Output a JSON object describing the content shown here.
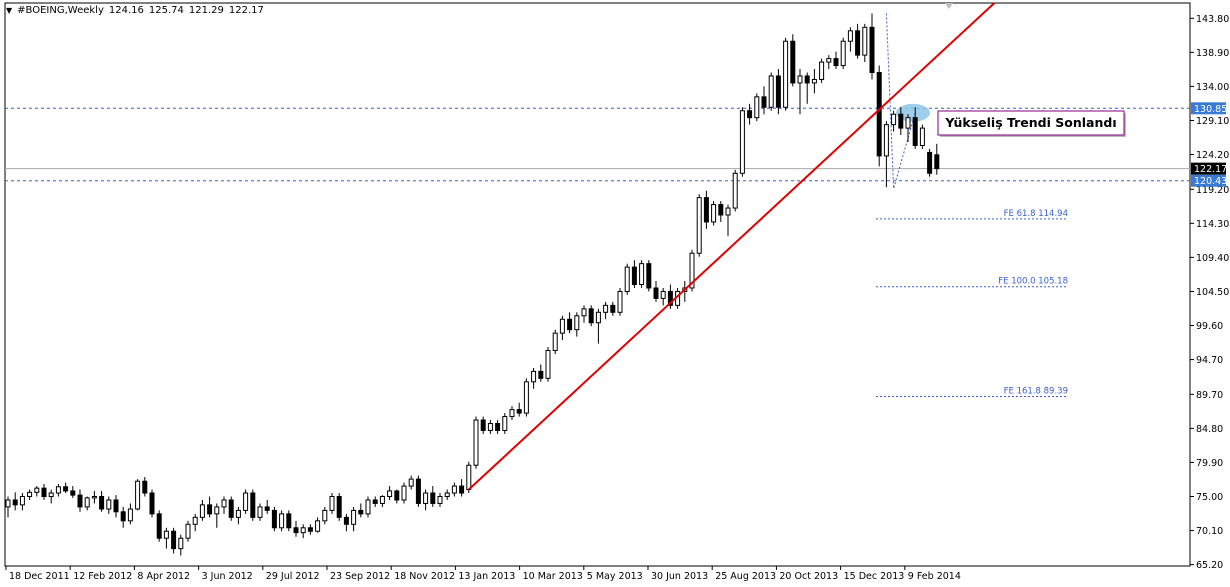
{
  "header": {
    "symbol": "#BOEING,Weekly",
    "open": "124.16",
    "high": "125.74",
    "low": "121.29",
    "close": "122.17"
  },
  "annotation": {
    "label": "Yükseliş Trendi Sonlandı"
  },
  "colors": {
    "trendline": "#e00000",
    "dashed_level": "#3a5fcd",
    "price_tag_blue": "#3a7bd5",
    "current_price_tag": "#000000",
    "highlight_ellipse": "#8ec5e6",
    "annotation_border": "#800080"
  },
  "chart_data": {
    "type": "candlestick",
    "timeframe": "Weekly",
    "ylim": [
      65.0,
      146.0
    ],
    "y_ticks": [
      "143.80",
      "138.90",
      "134.00",
      "129.10",
      "124.20",
      "119.20",
      "114.30",
      "109.40",
      "104.50",
      "99.60",
      "94.70",
      "89.70",
      "84.80",
      "79.90",
      "75.00",
      "70.10",
      "65.20"
    ],
    "x_ticks": [
      "18 Dec 2011",
      "12 Feb 2012",
      "8 Apr 2012",
      "3 Jun 2012",
      "29 Jul 2012",
      "23 Sep 2012",
      "18 Nov 2012",
      "13 Jan 2013",
      "10 Mar 2013",
      "5 May 2013",
      "30 Jun 2013",
      "25 Aug 2013",
      "20 Oct 2013",
      "15 Dec 2013",
      "9 Feb 2014"
    ],
    "candles": [
      [
        73.5,
        75.0,
        72.0,
        74.5
      ],
      [
        74.5,
        75.6,
        73.0,
        73.8
      ],
      [
        73.8,
        75.5,
        73.0,
        75.0
      ],
      [
        75.0,
        76.0,
        74.5,
        75.6
      ],
      [
        75.6,
        76.5,
        75.0,
        76.2
      ],
      [
        76.2,
        76.8,
        74.5,
        75.0
      ],
      [
        75.0,
        76.0,
        74.0,
        75.5
      ],
      [
        75.5,
        76.8,
        75.0,
        76.4
      ],
      [
        76.4,
        77.0,
        75.5,
        75.8
      ],
      [
        75.8,
        76.5,
        74.8,
        75.2
      ],
      [
        75.2,
        76.0,
        72.8,
        73.5
      ],
      [
        73.5,
        75.0,
        73.0,
        74.8
      ],
      [
        74.8,
        75.8,
        74.0,
        75.0
      ],
      [
        75.0,
        75.8,
        72.8,
        73.2
      ],
      [
        73.2,
        75.0,
        72.5,
        74.5
      ],
      [
        74.5,
        75.2,
        72.0,
        72.8
      ],
      [
        72.8,
        73.5,
        70.5,
        71.5
      ],
      [
        71.5,
        74.0,
        71.0,
        73.2
      ],
      [
        73.2,
        77.5,
        73.0,
        77.2
      ],
      [
        77.2,
        77.8,
        75.0,
        75.5
      ],
      [
        75.5,
        76.0,
        72.0,
        72.5
      ],
      [
        72.5,
        73.0,
        68.5,
        69.0
      ],
      [
        69.0,
        70.5,
        67.5,
        70.0
      ],
      [
        70.0,
        70.5,
        66.8,
        67.5
      ],
      [
        67.5,
        69.5,
        66.5,
        69.0
      ],
      [
        69.0,
        71.5,
        68.5,
        71.0
      ],
      [
        71.0,
        72.5,
        70.0,
        72.0
      ],
      [
        72.0,
        74.5,
        71.5,
        73.8
      ],
      [
        73.8,
        75.0,
        72.0,
        72.5
      ],
      [
        72.5,
        74.0,
        70.5,
        73.5
      ],
      [
        73.5,
        75.0,
        72.5,
        74.5
      ],
      [
        74.5,
        75.0,
        71.5,
        72.0
      ],
      [
        72.0,
        73.5,
        71.0,
        73.0
      ],
      [
        73.0,
        76.0,
        72.5,
        75.5
      ],
      [
        75.5,
        76.0,
        71.5,
        72.0
      ],
      [
        72.0,
        74.0,
        71.5,
        73.5
      ],
      [
        73.5,
        74.5,
        72.5,
        73.0
      ],
      [
        73.0,
        73.5,
        70.0,
        70.5
      ],
      [
        70.5,
        73.0,
        70.0,
        72.5
      ],
      [
        72.5,
        73.0,
        70.0,
        70.5
      ],
      [
        70.5,
        71.5,
        69.2,
        69.8
      ],
      [
        69.8,
        71.0,
        69.0,
        70.5
      ],
      [
        70.5,
        71.0,
        69.5,
        70.0
      ],
      [
        70.0,
        72.0,
        69.8,
        71.5
      ],
      [
        71.5,
        73.5,
        71.0,
        73.0
      ],
      [
        73.0,
        75.5,
        72.5,
        75.0
      ],
      [
        75.0,
        75.5,
        71.5,
        72.0
      ],
      [
        72.0,
        72.5,
        70.0,
        71.0
      ],
      [
        71.0,
        73.5,
        70.0,
        73.0
      ],
      [
        73.0,
        74.0,
        72.0,
        72.5
      ],
      [
        72.5,
        75.0,
        72.0,
        74.5
      ],
      [
        74.5,
        75.0,
        73.5,
        74.0
      ],
      [
        74.0,
        75.2,
        73.5,
        75.0
      ],
      [
        75.0,
        76.5,
        74.5,
        75.8
      ],
      [
        75.8,
        76.0,
        74.0,
        74.5
      ],
      [
        74.5,
        77.0,
        74.0,
        76.5
      ],
      [
        76.5,
        78.0,
        76.0,
        77.5
      ],
      [
        77.5,
        78.0,
        73.5,
        74.0
      ],
      [
        74.0,
        76.0,
        73.0,
        75.5
      ],
      [
        75.5,
        76.5,
        73.5,
        74.0
      ],
      [
        74.0,
        75.5,
        73.5,
        75.0
      ],
      [
        75.0,
        76.0,
        74.5,
        75.5
      ],
      [
        75.5,
        77.0,
        75.0,
        76.5
      ],
      [
        76.5,
        77.5,
        75.0,
        75.5
      ],
      [
        76.0,
        80.0,
        75.5,
        79.5
      ],
      [
        79.5,
        86.5,
        79.0,
        86.0
      ],
      [
        86.0,
        86.5,
        84.0,
        84.5
      ],
      [
        84.5,
        86.0,
        84.0,
        85.5
      ],
      [
        85.5,
        86.0,
        84.0,
        84.5
      ],
      [
        84.5,
        87.0,
        84.0,
        86.5
      ],
      [
        86.5,
        88.0,
        86.0,
        87.5
      ],
      [
        87.5,
        88.5,
        86.5,
        87.0
      ],
      [
        87.0,
        92.0,
        86.5,
        91.5
      ],
      [
        91.5,
        93.5,
        90.5,
        93.0
      ],
      [
        93.0,
        94.0,
        91.5,
        92.0
      ],
      [
        92.0,
        96.5,
        91.5,
        96.0
      ],
      [
        96.0,
        99.0,
        95.5,
        98.5
      ],
      [
        98.5,
        101.0,
        97.5,
        100.5
      ],
      [
        100.5,
        101.5,
        98.5,
        99.0
      ],
      [
        99.0,
        101.5,
        98.0,
        101.0
      ],
      [
        101.0,
        102.5,
        100.0,
        102.0
      ],
      [
        102.0,
        102.5,
        99.5,
        100.0
      ],
      [
        100.0,
        102.0,
        97.0,
        101.5
      ],
      [
        101.5,
        103.0,
        100.5,
        102.5
      ],
      [
        102.5,
        103.0,
        101.0,
        101.5
      ],
      [
        101.5,
        105.0,
        101.0,
        104.5
      ],
      [
        104.5,
        108.5,
        104.0,
        108.0
      ],
      [
        108.0,
        109.0,
        105.0,
        105.5
      ],
      [
        105.5,
        109.0,
        105.0,
        108.5
      ],
      [
        108.5,
        109.0,
        104.5,
        105.0
      ],
      [
        105.0,
        106.0,
        103.0,
        103.5
      ],
      [
        103.5,
        105.0,
        102.5,
        104.5
      ],
      [
        104.5,
        105.5,
        102.0,
        102.5
      ],
      [
        102.5,
        105.0,
        102.0,
        104.5
      ],
      [
        104.5,
        106.0,
        103.0,
        105.0
      ],
      [
        105.0,
        110.5,
        104.5,
        110.0
      ],
      [
        110.0,
        118.5,
        109.5,
        118.0
      ],
      [
        118.0,
        119.0,
        113.5,
        114.5
      ],
      [
        114.5,
        117.5,
        114.0,
        117.0
      ],
      [
        117.0,
        117.5,
        114.5,
        115.5
      ],
      [
        115.5,
        117.0,
        112.5,
        116.5
      ],
      [
        116.5,
        122.0,
        116.0,
        121.5
      ],
      [
        121.5,
        131.0,
        121.0,
        130.5
      ],
      [
        130.5,
        131.5,
        128.5,
        129.5
      ],
      [
        129.5,
        133.0,
        129.0,
        132.5
      ],
      [
        132.5,
        134.0,
        130.0,
        131.0
      ],
      [
        131.0,
        136.0,
        130.5,
        135.5
      ],
      [
        135.5,
        136.5,
        130.0,
        131.0
      ],
      [
        131.0,
        141.0,
        130.5,
        140.5
      ],
      [
        140.5,
        141.5,
        134.0,
        134.5
      ],
      [
        134.5,
        136.5,
        130.0,
        135.5
      ],
      [
        135.5,
        136.0,
        131.5,
        134.5
      ],
      [
        134.5,
        136.5,
        133.0,
        135.0
      ],
      [
        135.0,
        138.0,
        134.5,
        137.5
      ],
      [
        137.5,
        138.5,
        136.5,
        138.0
      ],
      [
        138.0,
        139.0,
        136.5,
        137.0
      ],
      [
        137.0,
        141.0,
        136.5,
        140.5
      ],
      [
        140.5,
        142.5,
        139.0,
        142.0
      ],
      [
        142.0,
        143.0,
        138.0,
        138.5
      ],
      [
        138.5,
        143.0,
        137.5,
        142.5
      ],
      [
        142.5,
        144.5,
        135.0,
        136.0
      ],
      [
        136.0,
        137.0,
        122.5,
        124.0
      ],
      [
        124.0,
        129.0,
        119.5,
        128.5
      ],
      [
        128.5,
        130.5,
        127.5,
        130.0
      ],
      [
        130.0,
        131.0,
        127.0,
        128.0
      ],
      [
        128.0,
        130.0,
        126.0,
        129.5
      ],
      [
        129.5,
        131.0,
        125.0,
        125.5
      ],
      [
        125.5,
        128.5,
        125.0,
        128.0
      ],
      [
        124.5,
        125.0,
        121.0,
        121.5
      ],
      [
        124.16,
        125.74,
        121.29,
        122.17
      ]
    ],
    "trendline": {
      "from": [
        64,
        76.0
      ],
      "to": [
        137,
        146.0
      ]
    },
    "horizontal_levels": [
      {
        "value": 130.85,
        "style": "dashed",
        "tag": "130.85"
      },
      {
        "value": 120.43,
        "style": "dashed",
        "tag": "120.43"
      },
      {
        "value": 122.17,
        "style": "solid-gray",
        "tag": "122.17"
      }
    ],
    "fibonacci_levels": [
      {
        "label": "FE 61.8 114.94",
        "value": 114.94
      },
      {
        "label": "FE 100.0 105.18",
        "value": 105.18
      },
      {
        "label": "FE 161.8 89.39",
        "value": 89.39
      }
    ]
  }
}
